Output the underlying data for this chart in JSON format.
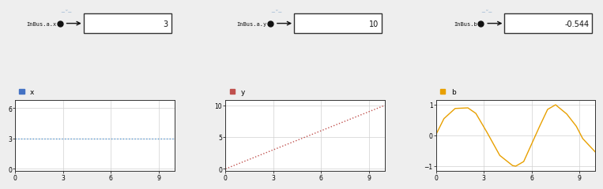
{
  "bg_color": "#eeeeee",
  "panel_bg": "#ffffff",
  "blocks": [
    {
      "label": "InBus.a.x",
      "value": "3"
    },
    {
      "label": "InBus.a.y",
      "value": "10"
    },
    {
      "label": "InBus.b",
      "value": "-0.544"
    }
  ],
  "plots": [
    {
      "legend_label": "x",
      "legend_color": "#4472c4",
      "line_color": "#5b9bd5",
      "line_style": "dotted",
      "x_data": [
        0,
        10
      ],
      "y_data": [
        3,
        3
      ],
      "xlim": [
        0,
        10
      ],
      "ylim": [
        -0.2,
        6.8
      ],
      "yticks": [
        0,
        3,
        6
      ],
      "xticks": [
        0,
        3,
        6,
        9
      ]
    },
    {
      "legend_label": "y",
      "legend_color": "#c0504d",
      "line_color": "#c0504d",
      "line_style": "dotted",
      "x_data": [
        0,
        10
      ],
      "y_data": [
        0,
        10
      ],
      "xlim": [
        0,
        10
      ],
      "ylim": [
        -0.3,
        10.8
      ],
      "yticks": [
        0,
        5,
        10
      ],
      "xticks": [
        0,
        3,
        6,
        9
      ]
    },
    {
      "legend_label": "b",
      "legend_color": "#e8a000",
      "line_color": "#e8a000",
      "line_style": "solid",
      "x_data": [
        0.0,
        0.5,
        1.2,
        2.0,
        2.5,
        3.2,
        4.0,
        4.8,
        5.0,
        5.5,
        6.5,
        7.0,
        7.5,
        8.2,
        8.8,
        9.2,
        10.0
      ],
      "y_data": [
        0.03,
        0.55,
        0.88,
        0.9,
        0.72,
        0.1,
        -0.65,
        -0.98,
        -1.0,
        -0.85,
        0.3,
        0.85,
        1.0,
        0.7,
        0.3,
        -0.1,
        -0.544
      ],
      "xlim": [
        0,
        10
      ],
      "ylim": [
        -1.15,
        1.15
      ],
      "yticks": [
        -1,
        0,
        1
      ],
      "xticks": [
        0,
        3,
        6,
        9
      ]
    }
  ]
}
